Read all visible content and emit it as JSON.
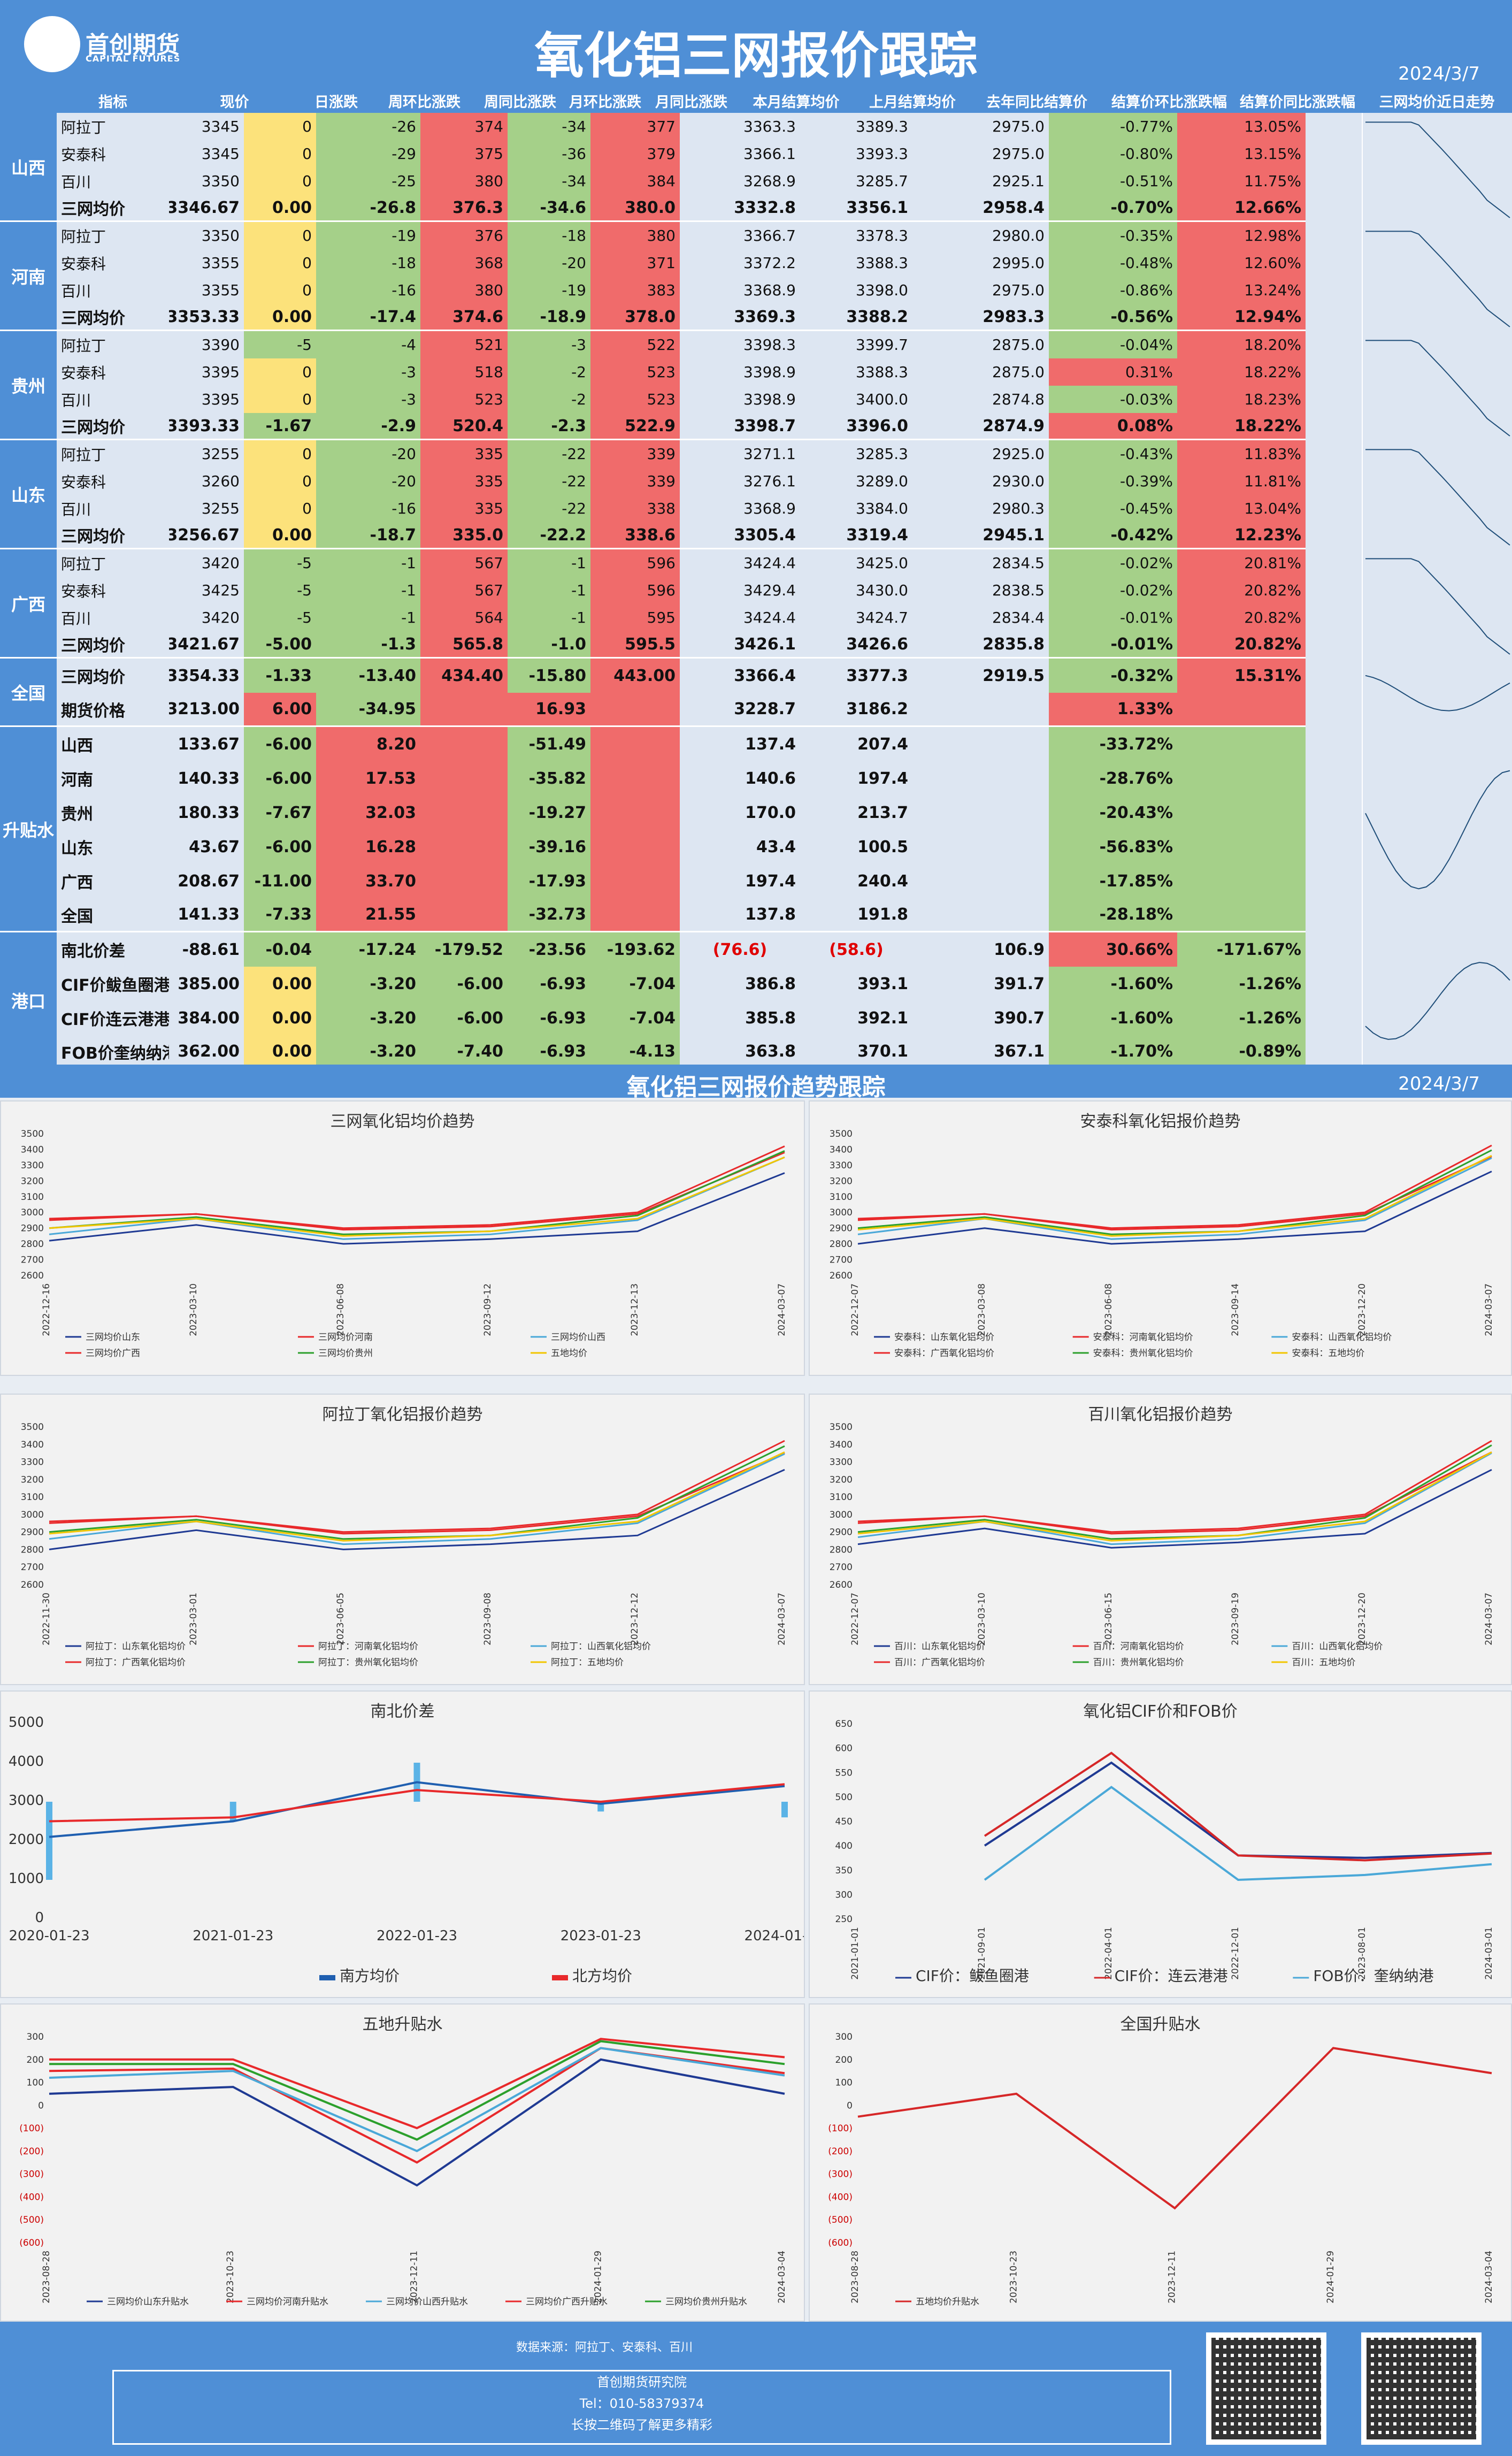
{
  "header": {
    "logo_cn": "首创期货",
    "logo_en": "CAPITAL FUTURES",
    "title": "氧化铝三网报价跟踪",
    "date": "2024/3/7"
  },
  "columns": [
    "指标",
    "现价",
    "日涨跌",
    "周环比涨跌",
    "周同比涨跌",
    "月环比涨跌",
    "月同比涨跌",
    "本月结算均价",
    "上月结算均价",
    "去年同比结算价",
    "结算价环比涨跌幅",
    "结算价同比涨跌幅",
    "三网均价近日走势"
  ],
  "groups": [
    {
      "region": "山西",
      "rows": [
        [
          "阿拉丁",
          "3345",
          "0",
          "-26",
          "374",
          "-34",
          "377",
          "3363.3",
          "3389.3",
          "2975.0",
          "-0.77%",
          "13.05%"
        ],
        [
          "安泰科",
          "3345",
          "0",
          "-29",
          "375",
          "-36",
          "379",
          "3366.1",
          "3393.3",
          "2975.0",
          "-0.80%",
          "13.15%"
        ],
        [
          "百川",
          "3350",
          "0",
          "-25",
          "380",
          "-34",
          "384",
          "3268.9",
          "3285.7",
          "2925.1",
          "-0.51%",
          "11.75%"
        ],
        [
          "三网均价",
          "3346.67",
          "0.00",
          "-26.8",
          "376.3",
          "-34.6",
          "380.0",
          "3332.8",
          "3356.1",
          "2958.4",
          "-0.70%",
          "12.66%"
        ]
      ]
    },
    {
      "region": "河南",
      "rows": [
        [
          "阿拉丁",
          "3350",
          "0",
          "-19",
          "376",
          "-18",
          "380",
          "3366.7",
          "3378.3",
          "2980.0",
          "-0.35%",
          "12.98%"
        ],
        [
          "安泰科",
          "3355",
          "0",
          "-18",
          "368",
          "-20",
          "371",
          "3372.2",
          "3388.3",
          "2995.0",
          "-0.48%",
          "12.60%"
        ],
        [
          "百川",
          "3355",
          "0",
          "-16",
          "380",
          "-19",
          "383",
          "3368.9",
          "3398.0",
          "2975.0",
          "-0.86%",
          "13.24%"
        ],
        [
          "三网均价",
          "3353.33",
          "0.00",
          "-17.4",
          "374.6",
          "-18.9",
          "378.0",
          "3369.3",
          "3388.2",
          "2983.3",
          "-0.56%",
          "12.94%"
        ]
      ]
    },
    {
      "region": "贵州",
      "rows": [
        [
          "阿拉丁",
          "3390",
          "-5",
          "-4",
          "521",
          "-3",
          "522",
          "3398.3",
          "3399.7",
          "2875.0",
          "-0.04%",
          "18.20%"
        ],
        [
          "安泰科",
          "3395",
          "0",
          "-3",
          "518",
          "-2",
          "523",
          "3398.9",
          "3388.3",
          "2875.0",
          "0.31%",
          "18.22%"
        ],
        [
          "百川",
          "3395",
          "0",
          "-3",
          "523",
          "-2",
          "523",
          "3398.9",
          "3400.0",
          "2874.8",
          "-0.03%",
          "18.23%"
        ],
        [
          "三网均价",
          "3393.33",
          "-1.67",
          "-2.9",
          "520.4",
          "-2.3",
          "522.9",
          "3398.7",
          "3396.0",
          "2874.9",
          "0.08%",
          "18.22%"
        ]
      ]
    },
    {
      "region": "山东",
      "rows": [
        [
          "阿拉丁",
          "3255",
          "0",
          "-20",
          "335",
          "-22",
          "339",
          "3271.1",
          "3285.3",
          "2925.0",
          "-0.43%",
          "11.83%"
        ],
        [
          "安泰科",
          "3260",
          "0",
          "-20",
          "335",
          "-22",
          "339",
          "3276.1",
          "3289.0",
          "2930.0",
          "-0.39%",
          "11.81%"
        ],
        [
          "百川",
          "3255",
          "0",
          "-16",
          "335",
          "-22",
          "338",
          "3368.9",
          "3384.0",
          "2980.3",
          "-0.45%",
          "13.04%"
        ],
        [
          "三网均价",
          "3256.67",
          "0.00",
          "-18.7",
          "335.0",
          "-22.2",
          "338.6",
          "3305.4",
          "3319.4",
          "2945.1",
          "-0.42%",
          "12.23%"
        ]
      ]
    },
    {
      "region": "广西",
      "rows": [
        [
          "阿拉丁",
          "3420",
          "-5",
          "-1",
          "567",
          "-1",
          "596",
          "3424.4",
          "3425.0",
          "2834.5",
          "-0.02%",
          "20.81%"
        ],
        [
          "安泰科",
          "3425",
          "-5",
          "-1",
          "567",
          "-1",
          "596",
          "3429.4",
          "3430.0",
          "2838.5",
          "-0.02%",
          "20.82%"
        ],
        [
          "百川",
          "3420",
          "-5",
          "-1",
          "564",
          "-1",
          "595",
          "3424.4",
          "3424.7",
          "2834.4",
          "-0.01%",
          "20.82%"
        ],
        [
          "三网均价",
          "3421.67",
          "-5.00",
          "-1.3",
          "565.8",
          "-1.0",
          "595.5",
          "3426.1",
          "3426.6",
          "2835.8",
          "-0.01%",
          "20.82%"
        ]
      ]
    },
    {
      "region": "全国",
      "rows": [
        [
          "三网均价",
          "3354.33",
          "-1.33",
          "-13.40",
          "434.40",
          "-15.80",
          "443.00",
          "3366.4",
          "3377.3",
          "2919.5",
          "-0.32%",
          "15.31%"
        ],
        [
          "期货价格",
          "3213.00",
          "6.00",
          "-34.95",
          "",
          "16.93",
          "",
          "3228.7",
          "3186.2",
          "",
          "1.33%",
          ""
        ]
      ]
    },
    {
      "region": "升贴水",
      "rows": [
        [
          "山西",
          "133.67",
          "-6.00",
          "8.20",
          "",
          "-51.49",
          "",
          "137.4",
          "207.4",
          "",
          "-33.72%",
          ""
        ],
        [
          "河南",
          "140.33",
          "-6.00",
          "17.53",
          "",
          "-35.82",
          "",
          "140.6",
          "197.4",
          "",
          "-28.76%",
          ""
        ],
        [
          "贵州",
          "180.33",
          "-7.67",
          "32.03",
          "",
          "-19.27",
          "",
          "170.0",
          "213.7",
          "",
          "-20.43%",
          ""
        ],
        [
          "山东",
          "43.67",
          "-6.00",
          "16.28",
          "",
          "-39.16",
          "",
          "43.4",
          "100.5",
          "",
          "-56.83%",
          ""
        ],
        [
          "广西",
          "208.67",
          "-11.00",
          "33.70",
          "",
          "-17.93",
          "",
          "197.4",
          "240.4",
          "",
          "-17.85%",
          ""
        ],
        [
          "全国",
          "141.33",
          "-7.33",
          "21.55",
          "",
          "-32.73",
          "",
          "137.8",
          "191.8",
          "",
          "-28.18%",
          ""
        ]
      ]
    },
    {
      "region": "港口",
      "rows": [
        [
          "南北价差",
          "-88.61",
          "-0.04",
          "-17.24",
          "-179.52",
          "-23.56",
          "-193.62",
          "(76.6)",
          "(58.6)",
          "106.9",
          "30.66%",
          "-171.67%"
        ],
        [
          "CIF价鲅鱼圈港",
          "385.00",
          "0.00",
          "-3.20",
          "-6.00",
          "-6.93",
          "-7.04",
          "386.8",
          "393.1",
          "391.7",
          "-1.60%",
          "-1.26%"
        ],
        [
          "CIF价连云港港",
          "384.00",
          "0.00",
          "-3.20",
          "-6.00",
          "-6.93",
          "-7.04",
          "385.8",
          "392.1",
          "390.7",
          "-1.60%",
          "-1.26%"
        ],
        [
          "FOB价奎纳纳港",
          "362.00",
          "0.00",
          "-3.20",
          "-7.40",
          "-6.93",
          "-4.13",
          "363.8",
          "370.1",
          "367.1",
          "-1.70%",
          "-0.89%"
        ]
      ]
    }
  ],
  "section2": {
    "title": "氧化铝三网报价趋势跟踪",
    "date": "2024/3/7"
  },
  "chart_data": [
    {
      "type": "line",
      "title": "三网氧化铝均价趋势",
      "ylim": [
        2600,
        3500
      ],
      "x": [
        "2022-12-16",
        "2023-03-10",
        "2023-06-08",
        "2023-09-12",
        "2023-12-13",
        "2024-03-07"
      ],
      "series": [
        {
          "name": "三网均价山东",
          "values": [
            2820,
            2920,
            2800,
            2830,
            2880,
            3250
          ]
        },
        {
          "name": "三网均价河南",
          "values": [
            2960,
            2990,
            2890,
            2910,
            2990,
            3380
          ]
        },
        {
          "name": "三网均价山西",
          "values": [
            2860,
            2960,
            2830,
            2860,
            2950,
            3350
          ]
        },
        {
          "name": "三网均价广西",
          "values": [
            2950,
            2990,
            2900,
            2920,
            3000,
            3420
          ]
        },
        {
          "name": "三网均价贵州",
          "values": [
            2900,
            2970,
            2860,
            2880,
            2980,
            3390
          ]
        },
        {
          "name": "五地均价",
          "values": [
            2900,
            2960,
            2850,
            2880,
            2960,
            3350
          ]
        }
      ]
    },
    {
      "type": "line",
      "title": "安泰科氧化铝报价趋势",
      "ylim": [
        2600,
        3500
      ],
      "x": [
        "2022-12-07",
        "2023-03-08",
        "2023-06-08",
        "2023-09-14",
        "2023-12-20",
        "2024-03-07"
      ],
      "series": [
        {
          "name": "安泰科：山东氧化铝均价",
          "values": [
            2800,
            2900,
            2800,
            2830,
            2880,
            3260
          ]
        },
        {
          "name": "安泰科：河南氧化铝均价",
          "values": [
            2960,
            2990,
            2890,
            2910,
            2990,
            3355
          ]
        },
        {
          "name": "安泰科：山西氧化铝均价",
          "values": [
            2860,
            2960,
            2830,
            2860,
            2950,
            3345
          ]
        },
        {
          "name": "安泰科：广西氧化铝均价",
          "values": [
            2950,
            2990,
            2900,
            2920,
            3000,
            3425
          ]
        },
        {
          "name": "安泰科：贵州氧化铝均价",
          "values": [
            2900,
            2970,
            2860,
            2880,
            2980,
            3395
          ]
        },
        {
          "name": "安泰科：五地均价",
          "values": [
            2890,
            2960,
            2850,
            2880,
            2960,
            3360
          ]
        }
      ]
    },
    {
      "type": "line",
      "title": "阿拉丁氧化铝报价趋势",
      "ylim": [
        2600,
        3500
      ],
      "x": [
        "2022-11-30",
        "2023-03-01",
        "2023-06-05",
        "2023-09-08",
        "2023-12-12",
        "2024-03-07"
      ],
      "series": [
        {
          "name": "阿拉丁：山东氧化铝均价",
          "values": [
            2800,
            2910,
            2800,
            2830,
            2880,
            3255
          ]
        },
        {
          "name": "阿拉丁：河南氧化铝均价",
          "values": [
            2960,
            2990,
            2890,
            2910,
            2990,
            3350
          ]
        },
        {
          "name": "阿拉丁：山西氧化铝均价",
          "values": [
            2860,
            2960,
            2830,
            2860,
            2950,
            3345
          ]
        },
        {
          "name": "阿拉丁：广西氧化铝均价",
          "values": [
            2950,
            2990,
            2900,
            2920,
            3000,
            3420
          ]
        },
        {
          "name": "阿拉丁：贵州氧化铝均价",
          "values": [
            2900,
            2970,
            2860,
            2880,
            2980,
            3390
          ]
        },
        {
          "name": "阿拉丁：五地均价",
          "values": [
            2890,
            2960,
            2850,
            2880,
            2960,
            3355
          ]
        }
      ]
    },
    {
      "type": "line",
      "title": "百川氧化铝报价趋势",
      "ylim": [
        2600,
        3500
      ],
      "x": [
        "2022-12-07",
        "2023-03-10",
        "2023-06-15",
        "2023-09-19",
        "2023-12-20",
        "2024-03-07"
      ],
      "series": [
        {
          "name": "百川：山东氧化铝均价",
          "values": [
            2830,
            2920,
            2810,
            2840,
            2890,
            3255
          ]
        },
        {
          "name": "百川：河南氧化铝均价",
          "values": [
            2960,
            2990,
            2890,
            2910,
            2990,
            3355
          ]
        },
        {
          "name": "百川：山西氧化铝均价",
          "values": [
            2870,
            2960,
            2830,
            2860,
            2950,
            3350
          ]
        },
        {
          "name": "百川：广西氧化铝均价",
          "values": [
            2950,
            2990,
            2900,
            2920,
            3000,
            3420
          ]
        },
        {
          "name": "百川：贵州氧化铝均价",
          "values": [
            2900,
            2970,
            2860,
            2880,
            2980,
            3395
          ]
        },
        {
          "name": "百川：五地均价",
          "values": [
            2890,
            2960,
            2850,
            2880,
            2960,
            3355
          ]
        }
      ]
    },
    {
      "type": "line",
      "title": "南北价差",
      "ylim": [
        0,
        5000
      ],
      "y2lim": [
        -600,
        400
      ],
      "x": [
        "2020-01-23",
        "2021-01-23",
        "2022-01-23",
        "2023-01-23",
        "2024-01-23"
      ],
      "series": [
        {
          "name": "南北价差",
          "values": [
            -400,
            -100,
            200,
            -50,
            -80
          ]
        },
        {
          "name": "南方均价",
          "values": [
            2100,
            2500,
            3500,
            2950,
            3400
          ]
        },
        {
          "name": "北方均价",
          "values": [
            2500,
            2600,
            3300,
            3000,
            3450
          ]
        }
      ]
    },
    {
      "type": "line",
      "title": "氧化铝CIF价和FOB价",
      "ylim": [
        250,
        650
      ],
      "x": [
        "2021-01-01",
        "2021-09-01",
        "2022-04-01",
        "2022-12-01",
        "2023-08-01",
        "2024-03-01"
      ],
      "series": [
        {
          "name": "CIF价：鲅鱼圈港",
          "values": [
            null,
            400,
            570,
            380,
            375,
            385
          ]
        },
        {
          "name": "CIF价：连云港港",
          "values": [
            null,
            420,
            590,
            380,
            370,
            384
          ]
        },
        {
          "name": "FOB价：奎纳纳港",
          "values": [
            null,
            330,
            520,
            330,
            340,
            362
          ]
        }
      ]
    },
    {
      "type": "line",
      "title": "五地升贴水",
      "ylim": [
        -600,
        300
      ],
      "x": [
        "2023-08-28",
        "2023-10-23",
        "2023-12-11",
        "2024-01-29",
        "2024-03-04"
      ],
      "series": [
        {
          "name": "三网均价山东升贴水",
          "values": [
            50,
            80,
            -350,
            200,
            50
          ]
        },
        {
          "name": "三网均价河南升贴水",
          "values": [
            150,
            160,
            -250,
            250,
            140
          ]
        },
        {
          "name": "三网均价山西升贴水",
          "values": [
            120,
            150,
            -200,
            250,
            130
          ]
        },
        {
          "name": "三网均价广西升贴水",
          "values": [
            200,
            200,
            -100,
            290,
            210
          ]
        },
        {
          "name": "三网均价贵州升贴水",
          "values": [
            180,
            180,
            -150,
            280,
            180
          ]
        }
      ]
    },
    {
      "type": "line",
      "title": "全国升贴水",
      "ylim": [
        -600,
        300
      ],
      "x": [
        "2023-08-28",
        "2023-10-23",
        "2023-12-11",
        "2024-01-29",
        "2024-03-04"
      ],
      "series": [
        {
          "name": "五地均价升贴水",
          "values": [
            -50,
            50,
            -450,
            250,
            140
          ]
        }
      ]
    }
  ],
  "footer": {
    "source": "数据来源：阿拉丁、安泰科、百川",
    "org": "首创期货研究院",
    "tel": "Tel：010-58379374",
    "qr_hint": "长按二维码了解更多精彩"
  },
  "colors": {
    "blue": "#4f8fd6",
    "yellow": "#fce27b",
    "green": "#a5d089",
    "red": "#f06b6b"
  }
}
